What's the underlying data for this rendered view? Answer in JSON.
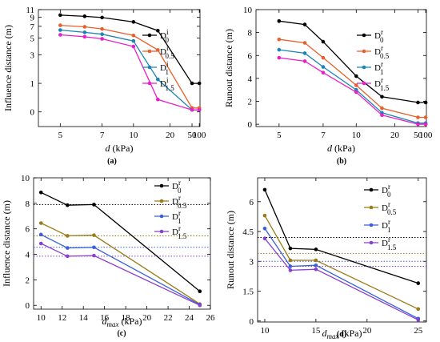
{
  "figure": {
    "panels": [
      {
        "id": "a",
        "panel_label": "(a)",
        "legend_names": [
          "D^i_0",
          "D^i_0.5",
          "D^i_1",
          "D^i_1.5"
        ],
        "legend_base": "D",
        "legend_supers": [
          "i",
          "i",
          "i",
          "i"
        ],
        "legend_subs": [
          "0",
          "0.5",
          "1",
          "1.5"
        ],
        "xlabel_main": "d",
        "xlabel_unit": " (kPa)",
        "ylabel": "Influence distance (m)"
      },
      {
        "id": "b",
        "panel_label": "(b)",
        "legend_names": [
          "D^r_0",
          "D^r_0.5",
          "D^r_1",
          "D^r_1.5"
        ],
        "legend_base": "D",
        "legend_supers": [
          "r",
          "r",
          "r",
          "r"
        ],
        "legend_subs": [
          "0",
          "0.5",
          "1",
          "1.5"
        ],
        "xlabel_main": "d",
        "xlabel_unit": " (kPa)",
        "ylabel": "Runout distance (m)"
      },
      {
        "id": "c",
        "panel_label": "(c)",
        "legend_names": [
          "D^r_0",
          "D^r_0.5",
          "D^r_1",
          "D^r_1.5"
        ],
        "legend_base": "D",
        "legend_supers": [
          "r",
          "r",
          "r",
          "r"
        ],
        "legend_subs": [
          "0",
          "0.5",
          "1",
          "1.5"
        ],
        "xlabel_main": "d",
        "xlabel_sub": "max",
        "xlabel_unit": " (kPa)",
        "ylabel": "Influence distance (m)"
      },
      {
        "id": "d",
        "panel_label": "(d)",
        "legend_names": [
          "D^r_0",
          "D^r_0.5",
          "D^r_1",
          "D^r_1.5"
        ],
        "legend_base": "D",
        "legend_supers": [
          "r",
          "r",
          "r",
          "r"
        ],
        "legend_subs": [
          "0",
          "0.5",
          "1",
          "1.5"
        ],
        "xlabel_main": "d",
        "xlabel_sub": "max",
        "xlabel_unit": " (kPa)",
        "ylabel": "Runout distance (m)"
      }
    ]
  },
  "colors": {
    "black": "#000000",
    "orange": "#e8612c",
    "teal": "#1a85b5",
    "magenta": "#e81ec8",
    "olive": "#9a7b17",
    "blue": "#3a5fd9",
    "purple": "#8a3fd0"
  },
  "chart_data": [
    {
      "type": "line",
      "x_scale": "reciprocal",
      "x": [
        5,
        6,
        7,
        10,
        15,
        50,
        100
      ],
      "x_ticks": [
        5,
        7,
        10,
        20,
        50,
        100
      ],
      "x_tick_labels": [
        "5",
        "7",
        "10",
        "20",
        "50",
        "100"
      ],
      "y_scale": "log(1+y)",
      "ylim": [
        -0.3,
        11
      ],
      "y_ticks": [
        0,
        1,
        3,
        5,
        7,
        9,
        11
      ],
      "y_tick_labels": [
        "0",
        "1",
        "3",
        "5",
        "7",
        "9",
        "11"
      ],
      "series": [
        {
          "name": "D^i_0",
          "color": "#000000",
          "marker": "circle",
          "x": [
            5,
            6,
            7,
            10,
            15,
            50,
            100
          ],
          "values": [
            9.5,
            9.2,
            8.9,
            7.9,
            6.2,
            1.0,
            1.0
          ]
        },
        {
          "name": "D^i_0.5",
          "color": "#e8612c",
          "marker": "circle",
          "x": [
            5,
            6,
            7,
            10,
            15,
            50,
            100
          ],
          "values": [
            7.2,
            6.9,
            6.5,
            5.4,
            3.5,
            0.1,
            0.1
          ]
        },
        {
          "name": "D^i_1",
          "color": "#1a85b5",
          "marker": "circle",
          "x": [
            5,
            6,
            7,
            10,
            15,
            50,
            100
          ],
          "values": [
            6.3,
            5.9,
            5.6,
            4.6,
            1.2,
            0.05,
            0.05
          ]
        },
        {
          "name": "D^i_1.5",
          "color": "#e81ec8",
          "marker": "circle",
          "x": [
            5,
            6,
            7,
            10,
            15,
            50,
            100
          ],
          "values": [
            5.5,
            5.2,
            4.9,
            3.9,
            0.35,
            0.05,
            0.05
          ]
        }
      ],
      "grid": false,
      "legend": "top-right"
    },
    {
      "type": "line",
      "x_scale": "reciprocal",
      "x": [
        5,
        6,
        7,
        10,
        15,
        50,
        100
      ],
      "x_ticks": [
        5,
        7,
        10,
        20,
        50,
        100
      ],
      "x_tick_labels": [
        "5",
        "7",
        "10",
        "20",
        "50",
        "100"
      ],
      "ylim": [
        -0.2,
        10
      ],
      "y_ticks": [
        0,
        2,
        4,
        6,
        8,
        10
      ],
      "y_tick_labels": [
        "0",
        "2",
        "4",
        "6",
        "8",
        "10"
      ],
      "series": [
        {
          "name": "D^r_0",
          "color": "#000000",
          "marker": "circle",
          "x": [
            5,
            6,
            7,
            10,
            15,
            50,
            100
          ],
          "values": [
            9.0,
            8.7,
            7.2,
            4.2,
            2.4,
            1.9,
            1.9
          ]
        },
        {
          "name": "D^r_0.5",
          "color": "#e8612c",
          "marker": "circle",
          "x": [
            5,
            6,
            7,
            10,
            15,
            50,
            100
          ],
          "values": [
            7.4,
            7.1,
            5.8,
            3.4,
            1.4,
            0.6,
            0.6
          ]
        },
        {
          "name": "D^r_1",
          "color": "#1a85b5",
          "marker": "circle",
          "x": [
            5,
            6,
            7,
            10,
            15,
            50,
            100
          ],
          "values": [
            6.5,
            6.2,
            5.0,
            3.0,
            1.0,
            0.1,
            0.1
          ]
        },
        {
          "name": "D^r_1.5",
          "color": "#e81ec8",
          "marker": "circle",
          "x": [
            5,
            6,
            7,
            10,
            15,
            50,
            100
          ],
          "values": [
            5.8,
            5.5,
            4.5,
            2.8,
            0.8,
            0.0,
            0.0
          ]
        }
      ],
      "grid": false,
      "legend": "top-right"
    },
    {
      "type": "line",
      "xlim": [
        9.3,
        26
      ],
      "x_ticks": [
        10,
        12,
        14,
        16,
        18,
        20,
        22,
        24,
        26
      ],
      "x_tick_labels": [
        "10",
        "12",
        "14",
        "16",
        "18",
        "20",
        "22",
        "24",
        "26"
      ],
      "ylim": [
        -0.3,
        10
      ],
      "y_ticks": [
        0,
        2,
        4,
        6,
        8,
        10
      ],
      "y_tick_labels": [
        "0",
        "2",
        "4",
        "6",
        "8",
        "10"
      ],
      "series": [
        {
          "name": "D^r_0",
          "color": "#000000",
          "marker": "circle",
          "x": [
            10,
            12.5,
            15,
            25
          ],
          "values": [
            8.85,
            7.85,
            7.9,
            1.1
          ],
          "reference_y": 7.9
        },
        {
          "name": "D^r_0.5",
          "color": "#9a7b17",
          "marker": "circle",
          "x": [
            10,
            12.5,
            15,
            25
          ],
          "values": [
            6.45,
            5.45,
            5.5,
            0.1
          ],
          "reference_y": 5.45
        },
        {
          "name": "D^r_1",
          "color": "#3a5fd9",
          "marker": "circle",
          "x": [
            10,
            12.5,
            15,
            25
          ],
          "values": [
            5.55,
            4.5,
            4.55,
            0.05
          ],
          "reference_y": 4.55
        },
        {
          "name": "D^r_1.5",
          "color": "#8a3fd0",
          "marker": "circle",
          "x": [
            10,
            12.5,
            15,
            25
          ],
          "values": [
            4.85,
            3.85,
            3.9,
            0.0
          ],
          "reference_y": 3.85
        }
      ],
      "grid": false,
      "legend": "top-right"
    },
    {
      "type": "line",
      "xlim": [
        9.3,
        25.8
      ],
      "x_ticks": [
        10,
        15,
        20,
        25
      ],
      "x_tick_labels": [
        "10",
        "15",
        "20",
        "25"
      ],
      "ylim": [
        -0.05,
        7.2
      ],
      "y_ticks": [
        0,
        1.5,
        3,
        4.5,
        6
      ],
      "y_tick_labels": [
        "0",
        "1.5",
        "3",
        "4.5",
        "6"
      ],
      "series": [
        {
          "name": "D^r_0",
          "color": "#000000",
          "marker": "circle",
          "x": [
            10,
            12.5,
            15,
            25
          ],
          "values": [
            6.6,
            3.65,
            3.6,
            1.9
          ],
          "reference_y": 4.2
        },
        {
          "name": "D^r_0.5",
          "color": "#9a7b17",
          "marker": "circle",
          "x": [
            10,
            12.5,
            15,
            25
          ],
          "values": [
            5.3,
            3.05,
            3.05,
            0.6
          ],
          "reference_y": 3.4
        },
        {
          "name": "D^r_1",
          "color": "#3a5fd9",
          "marker": "circle",
          "x": [
            10,
            12.5,
            15,
            25
          ],
          "values": [
            4.65,
            2.75,
            2.8,
            0.12
          ],
          "reference_y": 3.0
        },
        {
          "name": "D^r_1.5",
          "color": "#8a3fd0",
          "marker": "circle",
          "x": [
            10,
            12.5,
            15,
            25
          ],
          "values": [
            4.15,
            2.55,
            2.6,
            0.05
          ],
          "reference_y": 2.75
        }
      ],
      "grid": false,
      "legend": "top-right"
    }
  ]
}
